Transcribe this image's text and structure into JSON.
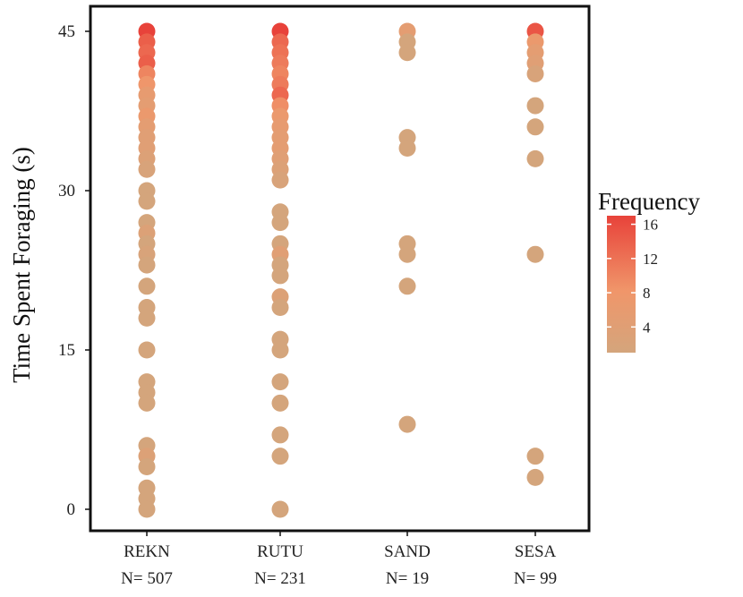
{
  "chart_data": {
    "type": "scatter",
    "title": "",
    "ylabel": "Time Spent Foraging (s)",
    "xlabel": "",
    "ylim": [
      0,
      45
    ],
    "yticks": [
      0,
      15,
      30,
      45
    ],
    "grid": false,
    "legend_placement": "right",
    "categories": [
      {
        "name": "REKN",
        "n_label": "N= 507"
      },
      {
        "name": "RUTU",
        "n_label": "N= 231"
      },
      {
        "name": "SAND",
        "n_label": "N= 19"
      },
      {
        "name": "SESA",
        "n_label": "N= 99"
      }
    ],
    "colorbar": {
      "title": "Frequency",
      "ticks": [
        4,
        8,
        12,
        16
      ],
      "range": [
        1,
        17
      ],
      "low_color": "#d4a57c",
      "mid_color": "#f0966a",
      "high_color": "#e8423a"
    },
    "points": [
      {
        "category": "REKN",
        "y": 45,
        "frequency": 17
      },
      {
        "category": "REKN",
        "y": 44,
        "frequency": 14
      },
      {
        "category": "REKN",
        "y": 43,
        "frequency": 13
      },
      {
        "category": "REKN",
        "y": 42,
        "frequency": 14
      },
      {
        "category": "REKN",
        "y": 41,
        "frequency": 10
      },
      {
        "category": "REKN",
        "y": 40,
        "frequency": 8
      },
      {
        "category": "REKN",
        "y": 39,
        "frequency": 6
      },
      {
        "category": "REKN",
        "y": 38,
        "frequency": 5
      },
      {
        "category": "REKN",
        "y": 37,
        "frequency": 7
      },
      {
        "category": "REKN",
        "y": 36,
        "frequency": 5
      },
      {
        "category": "REKN",
        "y": 35,
        "frequency": 4
      },
      {
        "category": "REKN",
        "y": 34,
        "frequency": 4
      },
      {
        "category": "REKN",
        "y": 33,
        "frequency": 3
      },
      {
        "category": "REKN",
        "y": 32,
        "frequency": 2
      },
      {
        "category": "REKN",
        "y": 30,
        "frequency": 1
      },
      {
        "category": "REKN",
        "y": 29,
        "frequency": 1
      },
      {
        "category": "REKN",
        "y": 27,
        "frequency": 1
      },
      {
        "category": "REKN",
        "y": 26,
        "frequency": 3
      },
      {
        "category": "REKN",
        "y": 25,
        "frequency": 1
      },
      {
        "category": "REKN",
        "y": 24,
        "frequency": 2
      },
      {
        "category": "REKN",
        "y": 23,
        "frequency": 1
      },
      {
        "category": "REKN",
        "y": 21,
        "frequency": 1
      },
      {
        "category": "REKN",
        "y": 19,
        "frequency": 1
      },
      {
        "category": "REKN",
        "y": 18,
        "frequency": 1
      },
      {
        "category": "REKN",
        "y": 15,
        "frequency": 1
      },
      {
        "category": "REKN",
        "y": 12,
        "frequency": 1
      },
      {
        "category": "REKN",
        "y": 11,
        "frequency": 1
      },
      {
        "category": "REKN",
        "y": 10,
        "frequency": 1
      },
      {
        "category": "REKN",
        "y": 6,
        "frequency": 1
      },
      {
        "category": "REKN",
        "y": 5,
        "frequency": 3
      },
      {
        "category": "REKN",
        "y": 4,
        "frequency": 1
      },
      {
        "category": "REKN",
        "y": 2,
        "frequency": 1
      },
      {
        "category": "REKN",
        "y": 1,
        "frequency": 1
      },
      {
        "category": "REKN",
        "y": 0,
        "frequency": 1
      },
      {
        "category": "RUTU",
        "y": 45,
        "frequency": 17
      },
      {
        "category": "RUTU",
        "y": 44,
        "frequency": 13
      },
      {
        "category": "RUTU",
        "y": 43,
        "frequency": 12
      },
      {
        "category": "RUTU",
        "y": 42,
        "frequency": 11
      },
      {
        "category": "RUTU",
        "y": 41,
        "frequency": 10
      },
      {
        "category": "RUTU",
        "y": 40,
        "frequency": 11
      },
      {
        "category": "RUTU",
        "y": 39,
        "frequency": 13
      },
      {
        "category": "RUTU",
        "y": 38,
        "frequency": 9
      },
      {
        "category": "RUTU",
        "y": 37,
        "frequency": 7
      },
      {
        "category": "RUTU",
        "y": 36,
        "frequency": 6
      },
      {
        "category": "RUTU",
        "y": 35,
        "frequency": 5
      },
      {
        "category": "RUTU",
        "y": 34,
        "frequency": 5
      },
      {
        "category": "RUTU",
        "y": 33,
        "frequency": 4
      },
      {
        "category": "RUTU",
        "y": 32,
        "frequency": 3
      },
      {
        "category": "RUTU",
        "y": 31,
        "frequency": 2
      },
      {
        "category": "RUTU",
        "y": 28,
        "frequency": 1
      },
      {
        "category": "RUTU",
        "y": 27,
        "frequency": 1
      },
      {
        "category": "RUTU",
        "y": 25,
        "frequency": 1
      },
      {
        "category": "RUTU",
        "y": 24,
        "frequency": 4
      },
      {
        "category": "RUTU",
        "y": 23,
        "frequency": 1
      },
      {
        "category": "RUTU",
        "y": 22,
        "frequency": 1
      },
      {
        "category": "RUTU",
        "y": 20,
        "frequency": 3
      },
      {
        "category": "RUTU",
        "y": 19,
        "frequency": 1
      },
      {
        "category": "RUTU",
        "y": 16,
        "frequency": 1
      },
      {
        "category": "RUTU",
        "y": 15,
        "frequency": 1
      },
      {
        "category": "RUTU",
        "y": 12,
        "frequency": 1
      },
      {
        "category": "RUTU",
        "y": 10,
        "frequency": 1
      },
      {
        "category": "RUTU",
        "y": 7,
        "frequency": 1
      },
      {
        "category": "RUTU",
        "y": 5,
        "frequency": 1
      },
      {
        "category": "RUTU",
        "y": 0,
        "frequency": 1
      },
      {
        "category": "SAND",
        "y": 45,
        "frequency": 5
      },
      {
        "category": "SAND",
        "y": 44,
        "frequency": 1
      },
      {
        "category": "SAND",
        "y": 43,
        "frequency": 1
      },
      {
        "category": "SAND",
        "y": 35,
        "frequency": 1
      },
      {
        "category": "SAND",
        "y": 34,
        "frequency": 1
      },
      {
        "category": "SAND",
        "y": 25,
        "frequency": 1
      },
      {
        "category": "SAND",
        "y": 24,
        "frequency": 1
      },
      {
        "category": "SAND",
        "y": 21,
        "frequency": 1
      },
      {
        "category": "SAND",
        "y": 8,
        "frequency": 1
      },
      {
        "category": "SESA",
        "y": 45,
        "frequency": 15
      },
      {
        "category": "SESA",
        "y": 44,
        "frequency": 7
      },
      {
        "category": "SESA",
        "y": 43,
        "frequency": 5
      },
      {
        "category": "SESA",
        "y": 42,
        "frequency": 4
      },
      {
        "category": "SESA",
        "y": 41,
        "frequency": 2
      },
      {
        "category": "SESA",
        "y": 38,
        "frequency": 1
      },
      {
        "category": "SESA",
        "y": 36,
        "frequency": 1
      },
      {
        "category": "SESA",
        "y": 33,
        "frequency": 1
      },
      {
        "category": "SESA",
        "y": 24,
        "frequency": 1
      },
      {
        "category": "SESA",
        "y": 5,
        "frequency": 1
      },
      {
        "category": "SESA",
        "y": 3,
        "frequency": 1
      }
    ]
  }
}
